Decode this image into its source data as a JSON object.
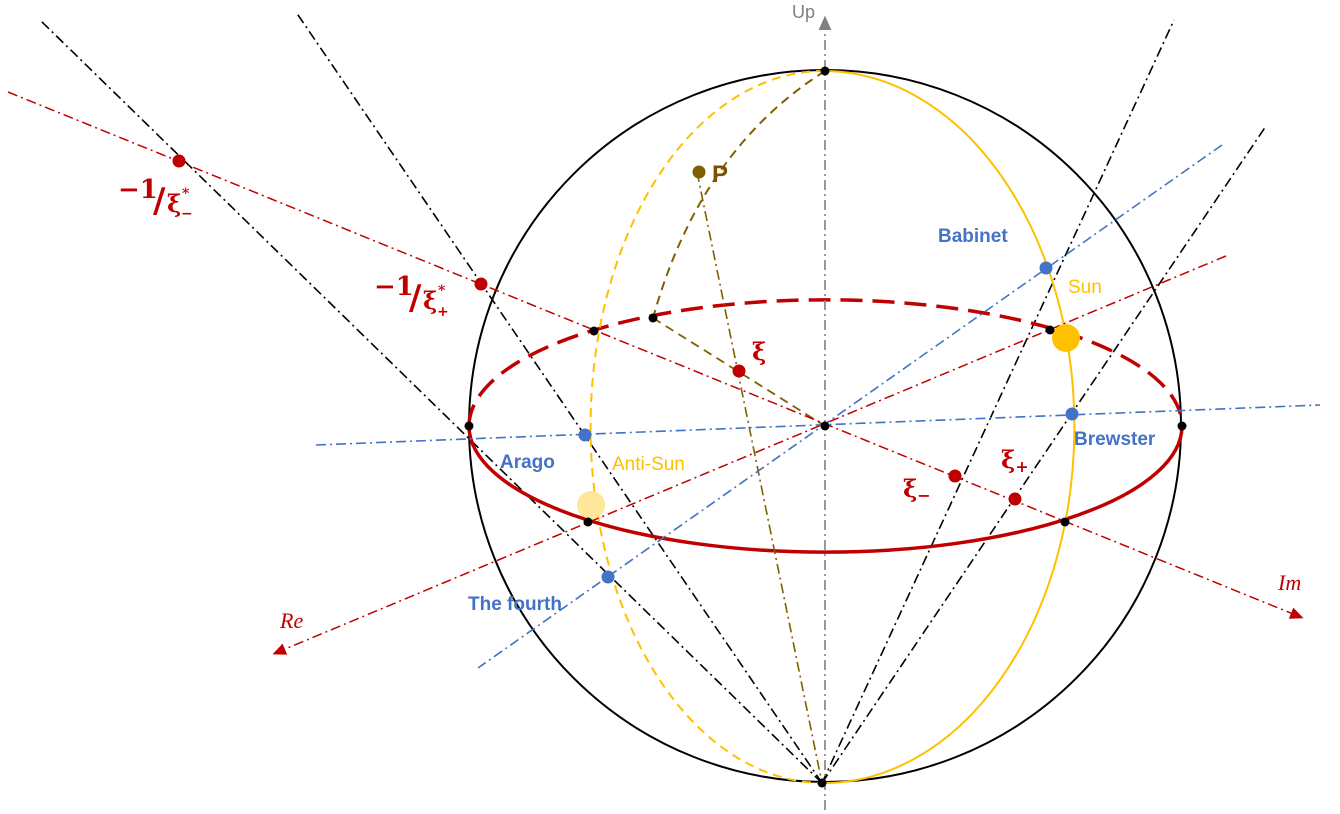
{
  "axes": {
    "up": "Up",
    "re": "Re",
    "im": "Im"
  },
  "neutral_points": {
    "babinet": "Babinet",
    "brewster": "Brewster",
    "arago": "Arago",
    "fourth": "The fourth"
  },
  "sun_points": {
    "sun": "Sun",
    "anti_sun": "Anti-Sun"
  },
  "point_labels": {
    "p": "P",
    "xi": "ξ",
    "xi_minus": "ξ",
    "xi_minus_sub": "−",
    "xi_plus": "ξ",
    "xi_plus_sub": "+",
    "inv_minus_num": "−1",
    "inv_minus_slash": "/",
    "inv_minus_xi": "ξ",
    "inv_minus_sup": "*",
    "inv_minus_sub": "−",
    "inv_plus_num": "−1",
    "inv_plus_slash": "/",
    "inv_plus_xi": "ξ",
    "inv_plus_sup": "*",
    "inv_plus_sub": "+"
  },
  "colors": {
    "sphere": "#000000",
    "equator": "#C00000",
    "sun_meridian": "#FFC000",
    "neutral_lines": "#4472C4",
    "projection_lines": "#000000",
    "point_p": "#7F6000",
    "up_axis": "#808080"
  }
}
